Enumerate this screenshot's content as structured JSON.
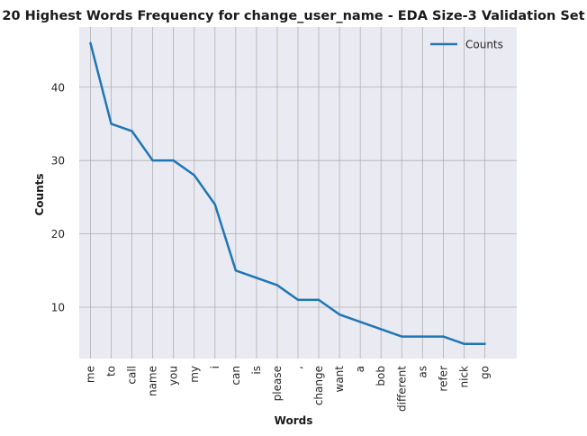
{
  "chart_data": {
    "type": "line",
    "title": "20 Highest Words Frequency for change_user_name - EDA Size-3 Validation Set",
    "xlabel": "Words",
    "ylabel": "Counts",
    "categories": [
      "me",
      "to",
      "call",
      "name",
      "you",
      "my",
      "i",
      "can",
      "is",
      "please",
      ",",
      "change",
      "want",
      "a",
      "bob",
      "different",
      "as",
      "refer",
      "nick",
      "go"
    ],
    "series": [
      {
        "name": "Counts",
        "values": [
          46,
          35,
          34,
          30,
          30,
          28,
          24,
          15,
          14,
          13,
          11,
          11,
          9,
          8,
          7,
          6,
          6,
          6,
          5,
          5
        ],
        "color": "#1f77b4"
      }
    ],
    "yticks": [
      10,
      20,
      30,
      40
    ],
    "ylim": [
      3,
      48.2
    ],
    "grid": true,
    "legend_position": "top-right",
    "background_color": "#eaeaf2",
    "grid_color": "#b0b0b0"
  }
}
